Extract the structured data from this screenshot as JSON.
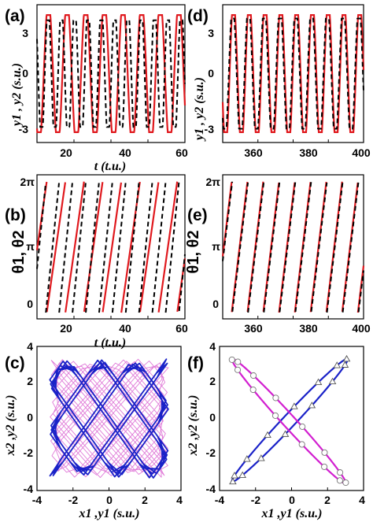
{
  "colors": {
    "red": "#e0191e",
    "black": "#000000",
    "blue": "#1a22c8",
    "magenta": "#d21fd0",
    "thin_magenta": "#e07ad8"
  },
  "chart_data": [
    {
      "panel": "(a)",
      "type": "line",
      "xlim": [
        10,
        60
      ],
      "ylim": [
        -4,
        4
      ],
      "xticks": [
        "20",
        "40",
        "60"
      ],
      "yticks": [
        "-3",
        "0",
        "3"
      ],
      "xlabel": "t (t.u.)",
      "ylabel": "y1 , y2 (s.u.)",
      "series": [
        {
          "style": "solid red",
          "amplitude": 3.4,
          "period": 6.3,
          "phase": 0.3
        },
        {
          "style": "dashed black",
          "amplitude": 3.1,
          "period": 4.5,
          "phase": 1.2
        }
      ]
    },
    {
      "panel": "(d)",
      "type": "line",
      "xlim": [
        350,
        400
      ],
      "ylim": [
        -4,
        4
      ],
      "xticks": [
        "360",
        "380",
        "400"
      ],
      "yticks": [
        "-3",
        "0",
        "3"
      ],
      "xlabel": "",
      "ylabel": "y1 , y2 (s.u.)",
      "series": [
        {
          "style": "solid red",
          "amplitude": 3.4,
          "period": 5.6,
          "phase": 0.4
        },
        {
          "style": "dashed black",
          "amplitude": 3.2,
          "period": 5.6,
          "phase": 0.7
        }
      ]
    },
    {
      "panel": "(b)",
      "type": "line",
      "xlim": [
        10,
        60
      ],
      "ylim": [
        -0.3,
        6.6
      ],
      "xticks": [
        "20",
        "40",
        "60"
      ],
      "yticks": [
        "0",
        "π",
        "2π"
      ],
      "xlabel": "t (t.u.)",
      "ylabel": "θ1, θ2",
      "series": [
        {
          "style": "solid red",
          "period": 6.3,
          "offset": 3.0
        },
        {
          "style": "dashed black",
          "period": 4.5,
          "offset": 1.5
        }
      ]
    },
    {
      "panel": "(e)",
      "type": "line",
      "xlim": [
        350,
        400
      ],
      "ylim": [
        -0.3,
        6.6
      ],
      "xticks": [
        "360",
        "380",
        "400"
      ],
      "yticks": [
        "0",
        "π",
        "2π"
      ],
      "xlabel": "",
      "ylabel": "θ1, θ2",
      "series": [
        {
          "style": "solid red",
          "period": 5.6,
          "offset": 2.4
        },
        {
          "style": "dashed black",
          "period": 5.6,
          "offset": 2.2
        }
      ]
    },
    {
      "panel": "(c)",
      "type": "scatter",
      "xlim": [
        -4,
        4
      ],
      "ylim": [
        -4,
        4
      ],
      "xticks": [
        "-4",
        "-2",
        "0",
        "2",
        "4"
      ],
      "yticks": [
        "-4",
        "-2",
        "0",
        "2",
        "4"
      ],
      "xlabel": "x1 ,y1 (s.u.)",
      "ylabel": "x2 ,y2 (s.u.)",
      "series": [
        {
          "style": "blue thick trajectory",
          "w1": 1.0,
          "w2": 1.4,
          "amplitude": 3.3
        },
        {
          "style": "magenta thin trajectory",
          "w1": 1.1,
          "w2": 1.25,
          "amplitude": 3.3
        }
      ]
    },
    {
      "panel": "(f)",
      "type": "scatter",
      "xlim": [
        -4,
        4
      ],
      "ylim": [
        -4,
        4
      ],
      "xticks": [
        "-4",
        "-2",
        "0",
        "2",
        "4"
      ],
      "yticks": [
        "-4",
        "-2",
        "0",
        "2",
        "4"
      ],
      "xlabel": "x1 ,y1 (s.u.)",
      "ylabel": "x2 ,y2 (s.u.)",
      "series": [
        {
          "style": "blue loop with triangle markers",
          "from": [
            -3.3,
            -3.5
          ],
          "to": [
            3.1,
            3.3
          ],
          "width": 0.35
        },
        {
          "style": "magenta loop with circle markers",
          "from": [
            -3.3,
            3.3
          ],
          "to": [
            3.0,
            -3.6
          ],
          "width": 0.35
        }
      ]
    }
  ]
}
